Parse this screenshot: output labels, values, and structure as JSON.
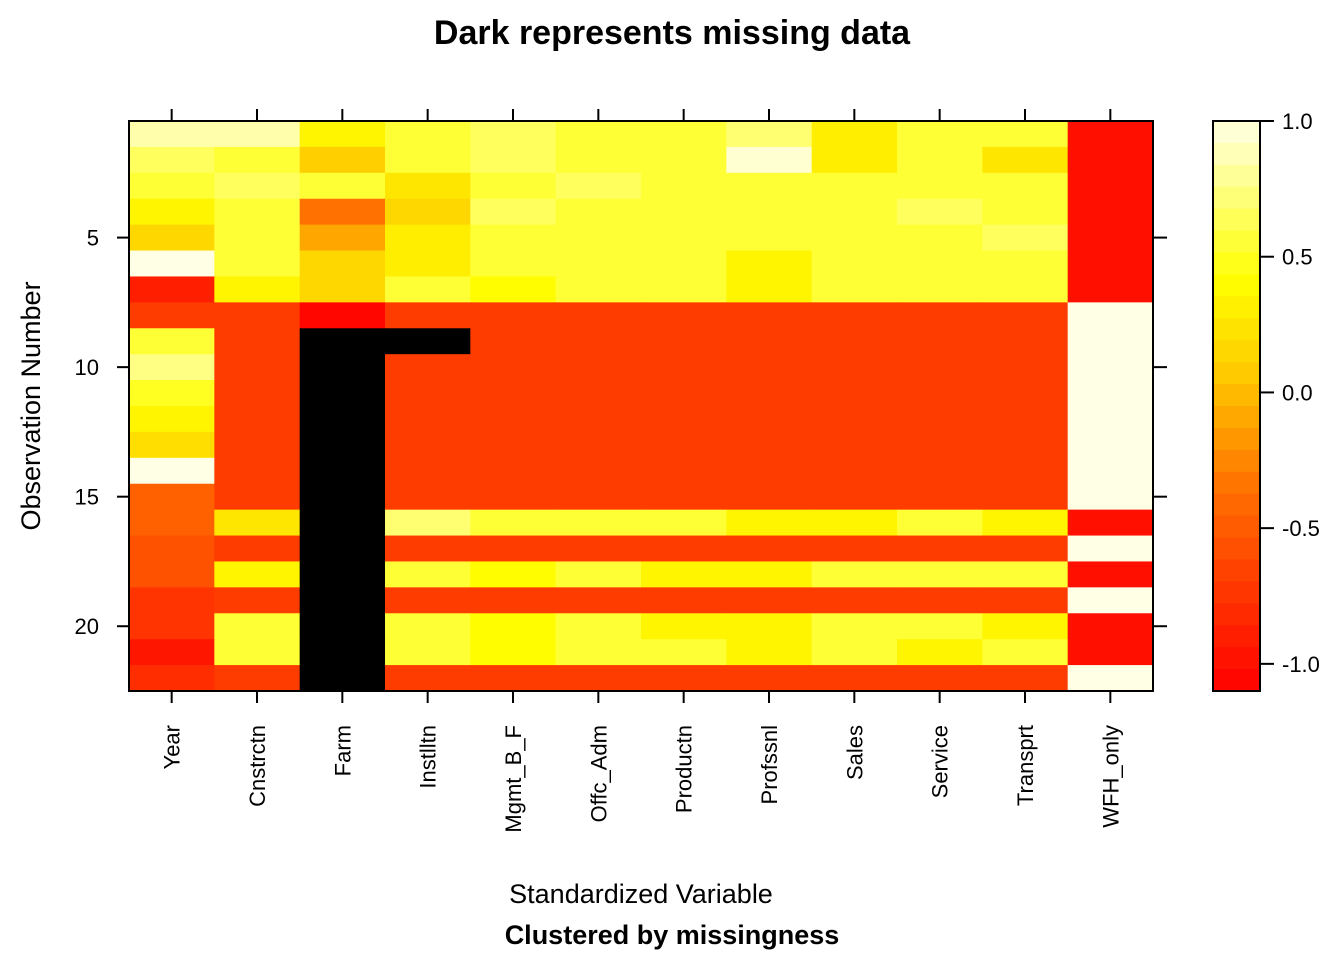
{
  "chart_data": {
    "type": "heatmap",
    "title": "Dark represents missing data",
    "xlabel": "Standardized Variable",
    "subtitle": "Clustered by missingness",
    "ylabel": "Observation Number",
    "columns": [
      "Year",
      "Cnstrctn",
      "Farm",
      "Instlltn",
      "Mgmt_B_F",
      "Offc_Adm",
      "Productn",
      "Profssnl",
      "Sales",
      "Service",
      "Transprt",
      "WFH_only"
    ],
    "rows": 22,
    "y_ticks": [
      5,
      10,
      15,
      20
    ],
    "colorbar": {
      "min": -1.1,
      "max": 1.0,
      "ticks": [
        1.0,
        0.5,
        0.0,
        -0.5,
        -1.0
      ],
      "tick_labels": [
        "1.0",
        "0.5",
        "0.0",
        "-0.5",
        "-1.0"
      ]
    },
    "missing_color": "#000000",
    "values": [
      [
        0.85,
        0.85,
        0.35,
        0.55,
        0.65,
        0.55,
        0.55,
        0.7,
        0.3,
        0.55,
        0.55,
        -1.0
      ],
      [
        0.65,
        0.55,
        0.1,
        0.55,
        0.65,
        0.55,
        0.55,
        0.95,
        0.3,
        0.55,
        0.25,
        -1.0
      ],
      [
        0.55,
        0.65,
        0.55,
        0.25,
        0.55,
        0.65,
        0.55,
        0.55,
        0.55,
        0.55,
        0.55,
        -1.0
      ],
      [
        0.35,
        0.55,
        -0.35,
        0.15,
        0.65,
        0.55,
        0.55,
        0.55,
        0.55,
        0.65,
        0.55,
        -1.0
      ],
      [
        0.15,
        0.55,
        -0.1,
        0.3,
        0.55,
        0.55,
        0.55,
        0.55,
        0.55,
        0.55,
        0.65,
        -1.0
      ],
      [
        1.0,
        0.55,
        0.15,
        0.3,
        0.55,
        0.55,
        0.55,
        0.35,
        0.55,
        0.55,
        0.55,
        -1.0
      ],
      [
        -0.9,
        0.35,
        0.15,
        0.55,
        0.4,
        0.55,
        0.55,
        0.35,
        0.55,
        0.55,
        0.55,
        -1.0
      ],
      [
        -0.7,
        -0.7,
        -1.05,
        -0.7,
        -0.7,
        -0.7,
        -0.7,
        -0.7,
        -0.7,
        -0.7,
        -0.7,
        1.0
      ],
      [
        0.55,
        -0.7,
        null,
        null,
        -0.7,
        -0.7,
        -0.7,
        -0.7,
        -0.7,
        -0.7,
        -0.7,
        1.0
      ],
      [
        0.75,
        -0.7,
        null,
        -0.7,
        -0.7,
        -0.7,
        -0.7,
        -0.7,
        -0.7,
        -0.7,
        -0.7,
        1.0
      ],
      [
        0.5,
        -0.7,
        null,
        -0.7,
        -0.7,
        -0.7,
        -0.7,
        -0.7,
        -0.7,
        -0.7,
        -0.7,
        1.0
      ],
      [
        0.35,
        -0.7,
        null,
        -0.7,
        -0.7,
        -0.7,
        -0.7,
        -0.7,
        -0.7,
        -0.7,
        -0.7,
        1.0
      ],
      [
        0.2,
        -0.7,
        null,
        -0.7,
        -0.7,
        -0.7,
        -0.7,
        -0.7,
        -0.7,
        -0.7,
        -0.7,
        1.0
      ],
      [
        1.0,
        -0.7,
        null,
        -0.7,
        -0.7,
        -0.7,
        -0.7,
        -0.7,
        -0.7,
        -0.7,
        -0.7,
        1.0
      ],
      [
        -0.45,
        -0.7,
        null,
        -0.7,
        -0.7,
        -0.7,
        -0.7,
        -0.7,
        -0.7,
        -0.7,
        -0.7,
        1.0
      ],
      [
        -0.45,
        0.25,
        null,
        0.7,
        0.55,
        0.55,
        0.55,
        0.35,
        0.35,
        0.55,
        0.35,
        -1.0
      ],
      [
        -0.55,
        -0.7,
        null,
        -0.7,
        -0.7,
        -0.7,
        -0.7,
        -0.7,
        -0.7,
        -0.7,
        -0.7,
        1.0
      ],
      [
        -0.55,
        0.35,
        null,
        0.55,
        0.4,
        0.55,
        0.35,
        0.35,
        0.55,
        0.55,
        0.55,
        -1.0
      ],
      [
        -0.75,
        -0.7,
        null,
        -0.7,
        -0.7,
        -0.7,
        -0.7,
        -0.7,
        -0.7,
        -0.7,
        -0.7,
        1.0
      ],
      [
        -0.75,
        0.55,
        null,
        0.55,
        0.4,
        0.55,
        0.35,
        0.35,
        0.55,
        0.55,
        0.35,
        -1.0
      ],
      [
        -0.95,
        0.55,
        null,
        0.55,
        0.4,
        0.55,
        0.55,
        0.35,
        0.55,
        0.35,
        0.55,
        -1.0
      ],
      [
        -0.8,
        -0.7,
        null,
        -0.7,
        -0.7,
        -0.7,
        -0.7,
        -0.7,
        -0.7,
        -0.7,
        -0.7,
        1.0
      ]
    ]
  }
}
